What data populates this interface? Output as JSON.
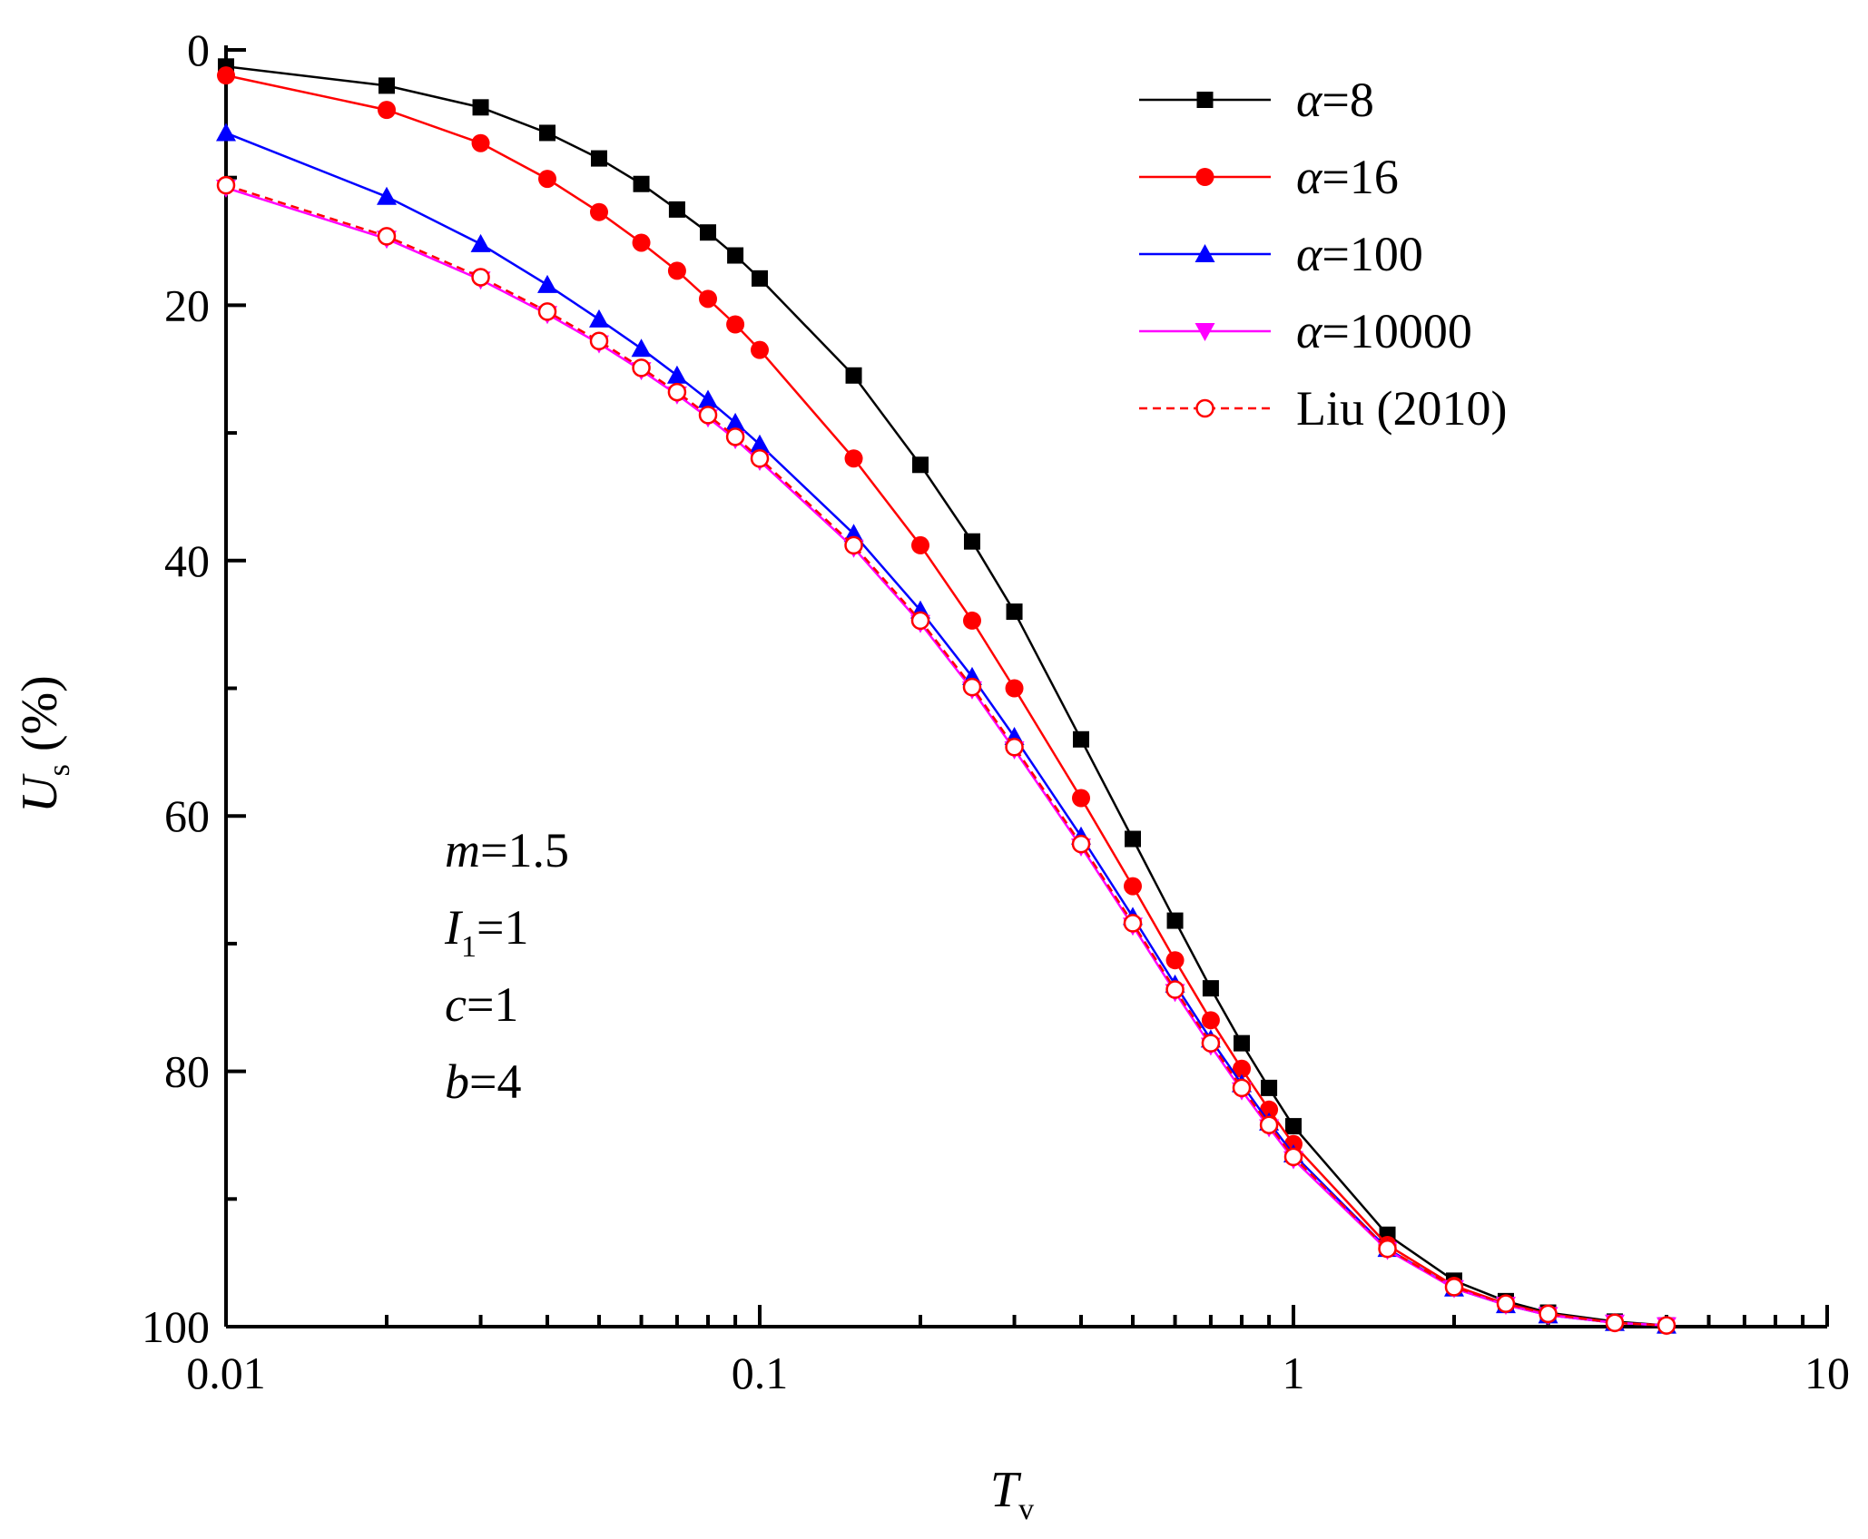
{
  "chart_data": {
    "type": "line",
    "title": "",
    "x_scale": "log",
    "xlim": [
      0.01,
      10
    ],
    "ylim": [
      0,
      100
    ],
    "y_inverted": true,
    "xlabel": {
      "symbol": "T",
      "subscript": "v"
    },
    "ylabel": {
      "symbol": "U",
      "subscript": "s",
      "unit": " (%)"
    },
    "x_ticks": [
      {
        "value": 0.01,
        "label": "0.01"
      },
      {
        "value": 0.1,
        "label": "0.1"
      },
      {
        "value": 1,
        "label": "1"
      },
      {
        "value": 10,
        "label": "10"
      }
    ],
    "y_ticks": [
      {
        "value": 0,
        "label": "0"
      },
      {
        "value": 20,
        "label": "20"
      },
      {
        "value": 40,
        "label": "40"
      },
      {
        "value": 60,
        "label": "60"
      },
      {
        "value": 80,
        "label": "80"
      },
      {
        "value": 100,
        "label": "100"
      }
    ],
    "legend_position": "top-right",
    "series": [
      {
        "name": "α=8",
        "symbol": "α",
        "rest": "=8",
        "color": "#000000",
        "marker": "square",
        "dash": "solid",
        "x": [
          0.01,
          0.02,
          0.03,
          0.04,
          0.05,
          0.06,
          0.07,
          0.08,
          0.09,
          0.1,
          0.15,
          0.2,
          0.25,
          0.3,
          0.4,
          0.5,
          0.6,
          0.7,
          0.8,
          0.9,
          1.0,
          1.5,
          2.0,
          2.5,
          3.0,
          4.0,
          5.0
        ],
        "y": [
          1.3,
          2.8,
          4.5,
          6.5,
          8.5,
          10.5,
          12.5,
          14.3,
          16.1,
          17.9,
          25.5,
          32.5,
          38.5,
          44.0,
          54.0,
          61.8,
          68.2,
          73.5,
          77.8,
          81.3,
          84.3,
          92.8,
          96.4,
          98.0,
          98.9,
          99.6,
          99.9
        ]
      },
      {
        "name": "α=16",
        "symbol": "α",
        "rest": "=16",
        "color": "#ff0000",
        "marker": "circle",
        "dash": "solid",
        "x": [
          0.01,
          0.02,
          0.03,
          0.04,
          0.05,
          0.06,
          0.07,
          0.08,
          0.09,
          0.1,
          0.15,
          0.2,
          0.25,
          0.3,
          0.4,
          0.5,
          0.6,
          0.7,
          0.8,
          0.9,
          1.0,
          1.5,
          2.0,
          2.5,
          3.0,
          4.0,
          5.0
        ],
        "y": [
          2.0,
          4.7,
          7.3,
          10.1,
          12.7,
          15.1,
          17.3,
          19.5,
          21.5,
          23.5,
          32.0,
          38.8,
          44.7,
          50.0,
          58.6,
          65.5,
          71.3,
          76.0,
          79.8,
          83.0,
          85.7,
          93.6,
          96.8,
          98.2,
          99.0,
          99.7,
          99.9
        ]
      },
      {
        "name": "α=100",
        "symbol": "α",
        "rest": "=100",
        "color": "#0000ff",
        "marker": "triangle-up",
        "dash": "solid",
        "x": [
          0.01,
          0.02,
          0.03,
          0.04,
          0.05,
          0.06,
          0.07,
          0.08,
          0.09,
          0.1,
          0.15,
          0.2,
          0.25,
          0.3,
          0.4,
          0.5,
          0.6,
          0.7,
          0.8,
          0.9,
          1.0,
          1.5,
          2.0,
          2.5,
          3.0,
          4.0,
          5.0
        ],
        "y": [
          6.5,
          11.5,
          15.2,
          18.4,
          21.1,
          23.4,
          25.5,
          27.4,
          29.2,
          30.9,
          37.9,
          43.9,
          49.1,
          53.8,
          61.6,
          67.9,
          73.2,
          77.5,
          81.0,
          84.0,
          86.5,
          93.9,
          97.0,
          98.3,
          99.1,
          99.7,
          99.9
        ]
      },
      {
        "name": "α=10000",
        "symbol": "α",
        "rest": "=10000",
        "color": "#ff00ff",
        "marker": "triangle-down",
        "dash": "solid",
        "x": [
          0.01,
          0.02,
          0.03,
          0.04,
          0.05,
          0.06,
          0.07,
          0.08,
          0.09,
          0.1,
          0.15,
          0.2,
          0.25,
          0.3,
          0.4,
          0.5,
          0.6,
          0.7,
          0.8,
          0.9,
          1.0,
          1.5,
          2.0,
          2.5,
          3.0,
          4.0,
          5.0
        ],
        "y": [
          10.8,
          14.8,
          18.0,
          20.7,
          23.0,
          25.1,
          27.0,
          28.8,
          30.5,
          32.2,
          39.0,
          44.9,
          50.1,
          54.8,
          62.4,
          68.6,
          73.8,
          78.0,
          81.5,
          84.4,
          86.9,
          94.0,
          97.0,
          98.3,
          99.1,
          99.7,
          99.9
        ]
      },
      {
        "name": "Liu (2010)",
        "symbol": "",
        "rest": "Liu (2010)",
        "color": "#ff0000",
        "marker": "open-circle",
        "dash": "dashed",
        "x": [
          0.01,
          0.02,
          0.03,
          0.04,
          0.05,
          0.06,
          0.07,
          0.08,
          0.09,
          0.1,
          0.15,
          0.2,
          0.25,
          0.3,
          0.4,
          0.5,
          0.6,
          0.7,
          0.8,
          0.9,
          1.0,
          1.5,
          2.0,
          2.5,
          3.0,
          4.0,
          5.0
        ],
        "y": [
          10.6,
          14.6,
          17.8,
          20.5,
          22.8,
          24.9,
          26.8,
          28.6,
          30.3,
          32.0,
          38.8,
          44.7,
          49.9,
          54.6,
          62.2,
          68.4,
          73.6,
          77.8,
          81.3,
          84.2,
          86.7,
          93.9,
          96.9,
          98.2,
          99.0,
          99.7,
          99.9
        ]
      }
    ],
    "annotations": [
      {
        "symbol": "m",
        "sub": "",
        "value": "=1.5"
      },
      {
        "symbol": "I",
        "sub": "1",
        "value": "=1"
      },
      {
        "symbol": "c",
        "sub": "",
        "value": "=1"
      },
      {
        "symbol": "b",
        "sub": "",
        "value": "=4"
      }
    ]
  }
}
